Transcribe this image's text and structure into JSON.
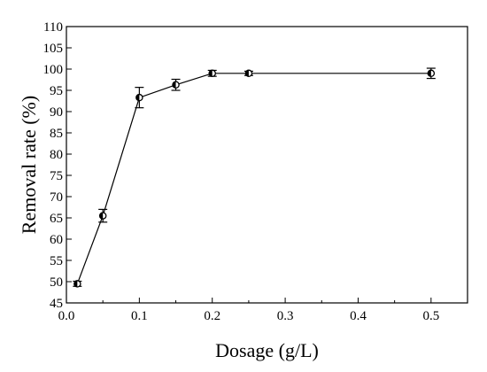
{
  "chart_data": {
    "type": "line",
    "title": "",
    "xlabel": "Dosage (g/L)",
    "ylabel": "Removal rate (%)",
    "xlim": [
      0.0,
      0.55
    ],
    "ylim": [
      45,
      110
    ],
    "xticks": [
      "0.0",
      "0.1",
      "0.2",
      "0.3",
      "0.4",
      "0.5"
    ],
    "yticks": [
      "45",
      "50",
      "55",
      "60",
      "65",
      "70",
      "75",
      "80",
      "85",
      "90",
      "95",
      "100",
      "105",
      "110"
    ],
    "grid": false,
    "series": [
      {
        "x": [
          0.015,
          0.05,
          0.1,
          0.15,
          0.2,
          0.25,
          0.5
        ],
        "y": [
          49.5,
          65.5,
          93.3,
          96.3,
          99.0,
          99.0,
          99.0
        ],
        "error": [
          0.6,
          1.5,
          2.4,
          1.3,
          0.7,
          0.5,
          1.2
        ],
        "marker": "circle-half-filled",
        "color": "#000000"
      }
    ]
  }
}
